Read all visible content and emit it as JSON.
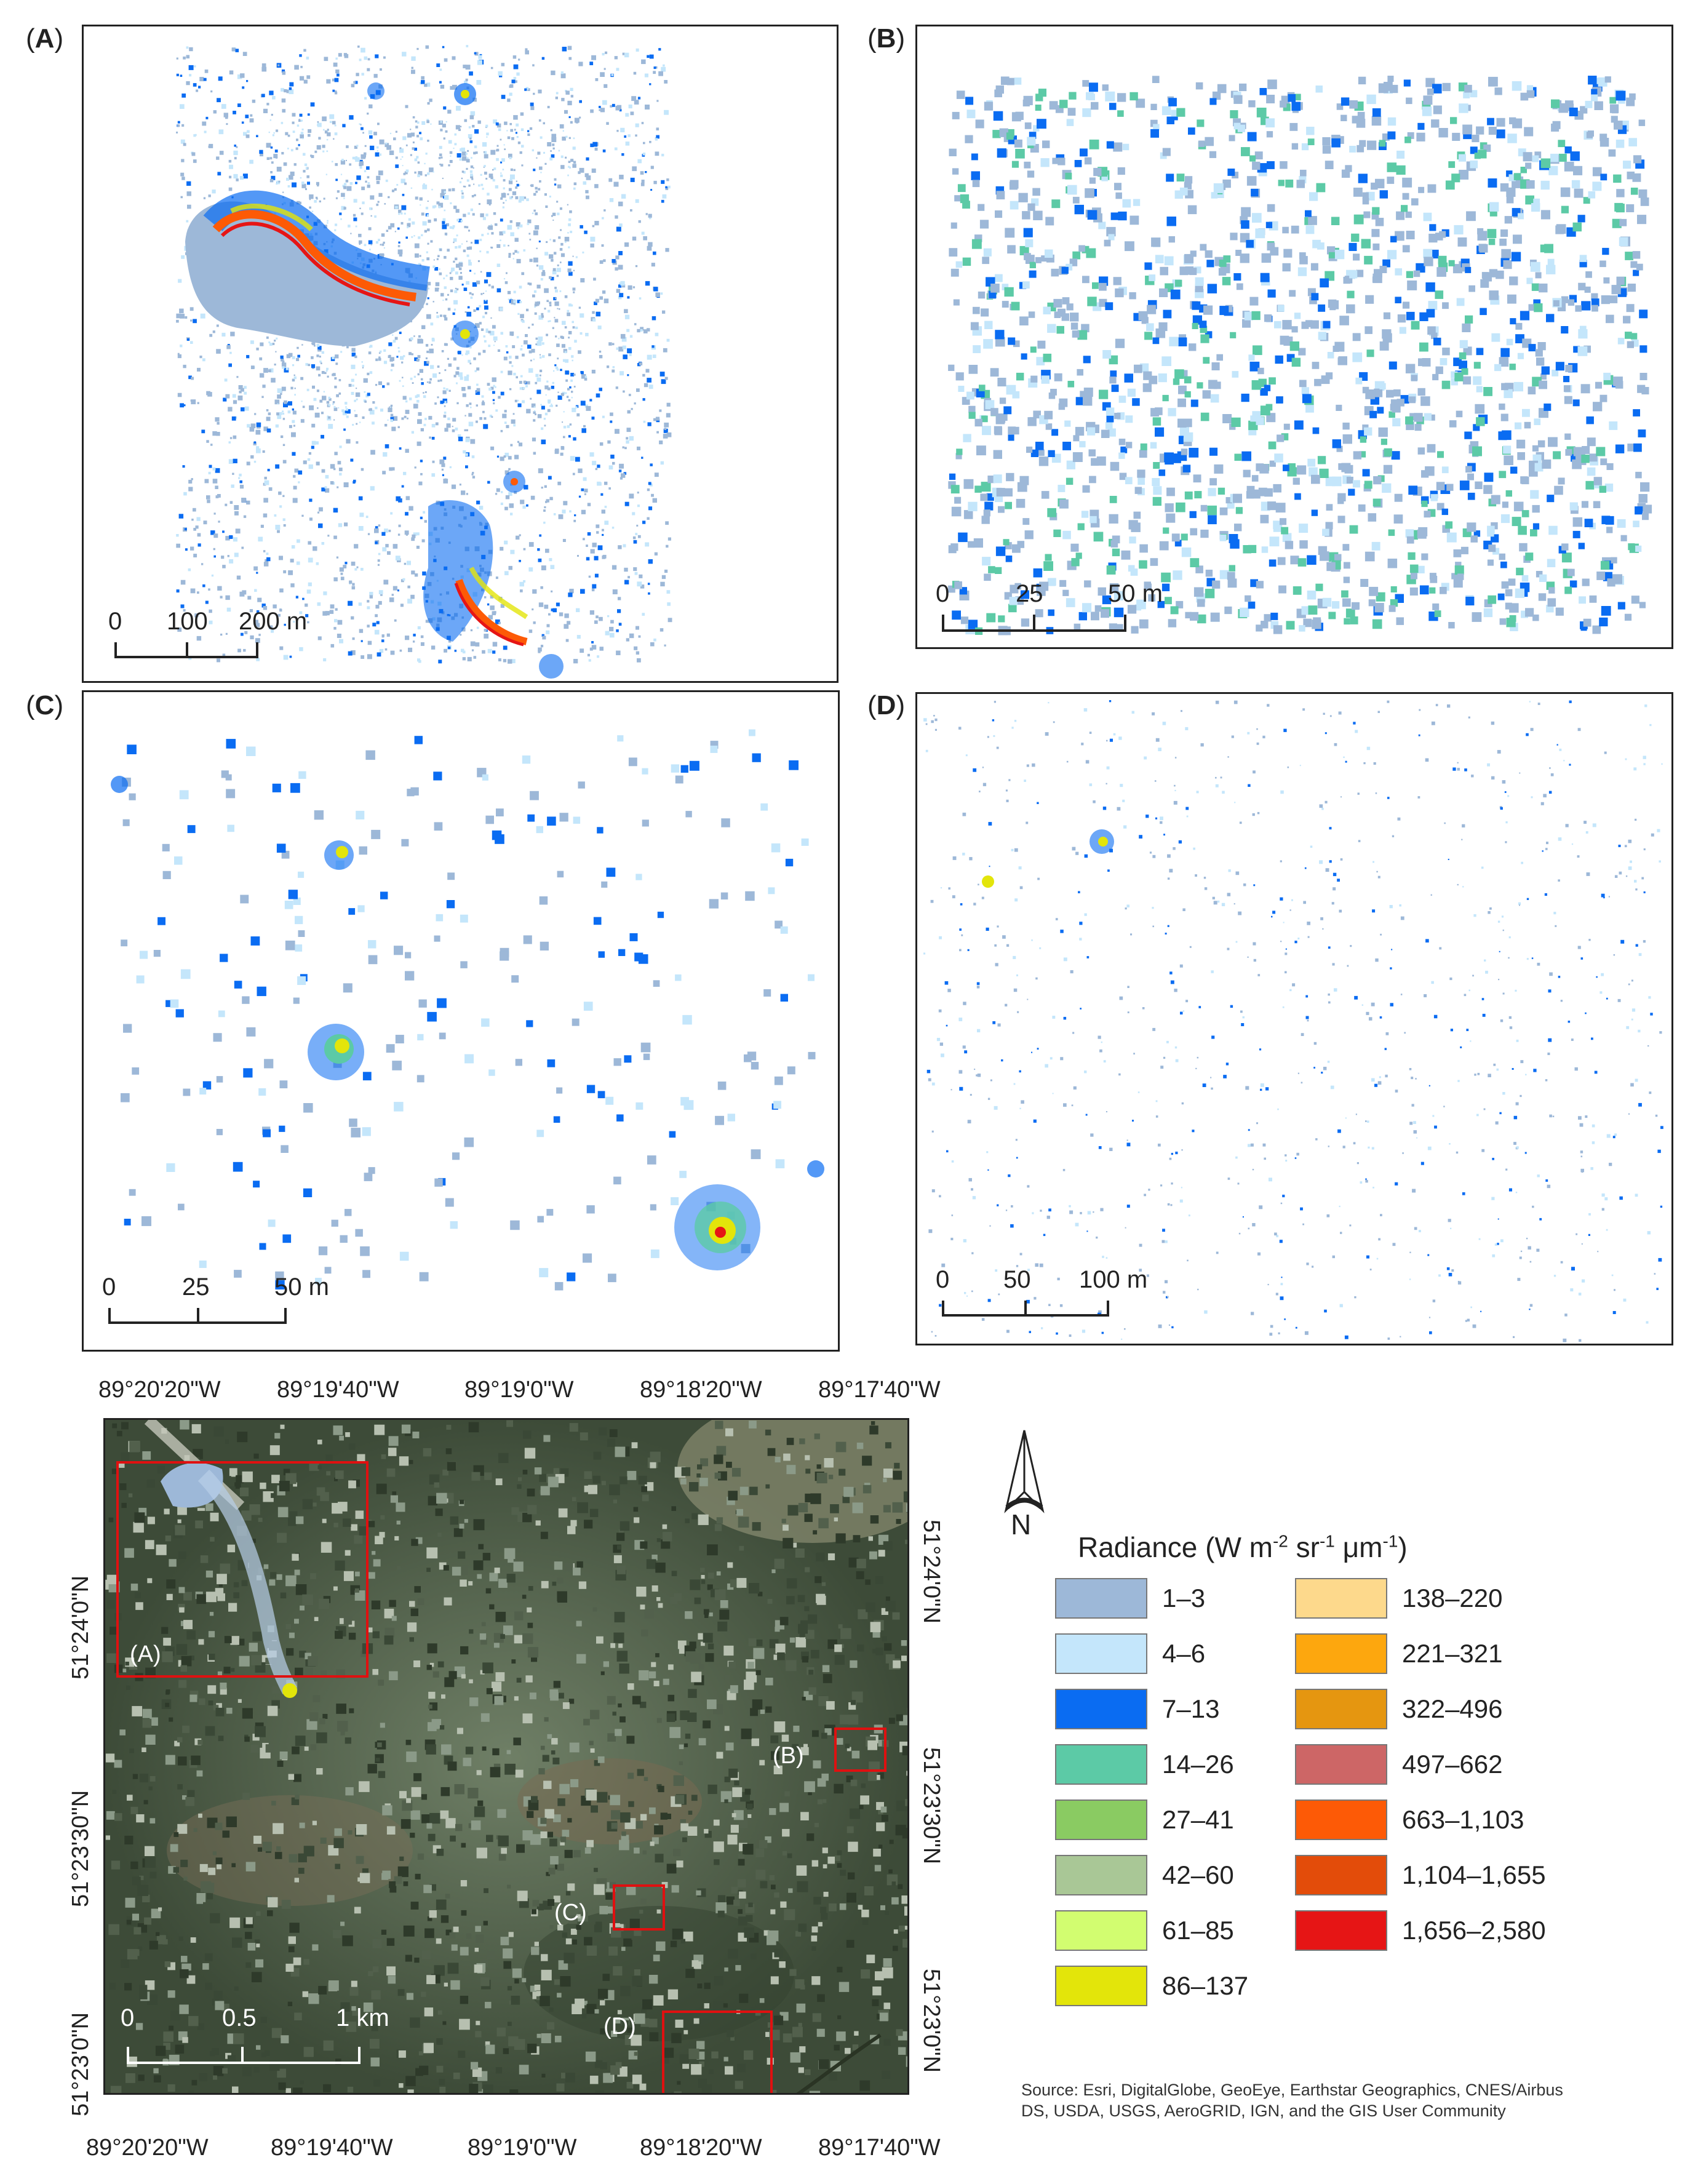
{
  "panels": {
    "A": {
      "label_letter": "A",
      "scale": {
        "ticks": [
          "0",
          "100",
          "200 m"
        ]
      }
    },
    "B": {
      "label_letter": "B",
      "scale": {
        "ticks": [
          "0",
          "25",
          "50 m"
        ]
      }
    },
    "C": {
      "label_letter": "C",
      "scale": {
        "ticks": [
          "0",
          "25",
          "50 m"
        ]
      }
    },
    "D": {
      "label_letter": "D",
      "scale": {
        "ticks": [
          "0",
          "50",
          "100 m"
        ]
      }
    }
  },
  "overview": {
    "top_lon": [
      "89°20'20\"W",
      "89°19'40\"W",
      "89°19'0\"W",
      "89°18'20\"W",
      "89°17'40\"W"
    ],
    "bottom_lon": [
      "89°20'20\"W",
      "89°19'40\"W",
      "89°19'0\"W",
      "89°18'20\"W",
      "89°17'40\"W"
    ],
    "left_lat": [
      "51°24'0\"N",
      "51°23'30\"N",
      "51°23'0\"N"
    ],
    "right_lat": [
      "51°24'0\"N",
      "51°23'30\"N",
      "51°23'0\"N"
    ],
    "boxes": {
      "A": "(A)",
      "B": "(B)",
      "C": "(C)",
      "D": "(D)"
    },
    "scale": {
      "ticks": [
        "0",
        "0.5",
        "1 km"
      ]
    }
  },
  "north": {
    "letter": "N"
  },
  "legend": {
    "title_prefix": "Radiance (W m",
    "sup1": "-2",
    "mid1": " sr",
    "sup2": "-1",
    "mid2": " μm",
    "sup3": "-1",
    "title_suffix": ")",
    "items": [
      {
        "label": "1–3",
        "color": "#9db8d8"
      },
      {
        "label": "4–6",
        "color": "#c4e6fb"
      },
      {
        "label": "7–13",
        "color": "#0a6cf2"
      },
      {
        "label": "14–26",
        "color": "#5ccaa6"
      },
      {
        "label": "27–41",
        "color": "#8acb62"
      },
      {
        "label": "42–60",
        "color": "#a9c796"
      },
      {
        "label": "61–85",
        "color": "#d2fd70"
      },
      {
        "label": "86–137",
        "color": "#e3e50a"
      },
      {
        "label": "138–220",
        "color": "#fdd98c"
      },
      {
        "label": "221–321",
        "color": "#fda70e"
      },
      {
        "label": "322–496",
        "color": "#e59610"
      },
      {
        "label": "497–662",
        "color": "#cd6666"
      },
      {
        "label": "663–1,103",
        "color": "#fd5a06"
      },
      {
        "label": "1,104–1,655",
        "color": "#e34c0a"
      },
      {
        "label": "1,656–2,580",
        "color": "#e61515"
      }
    ]
  },
  "source": {
    "line1": "Source: Esri, DigitalGlobe, GeoEye, Earthstar Geographics, CNES/Airbus",
    "line2": "DS, USDA, USGS, AeroGRID, IGN, and the GIS User Community"
  }
}
